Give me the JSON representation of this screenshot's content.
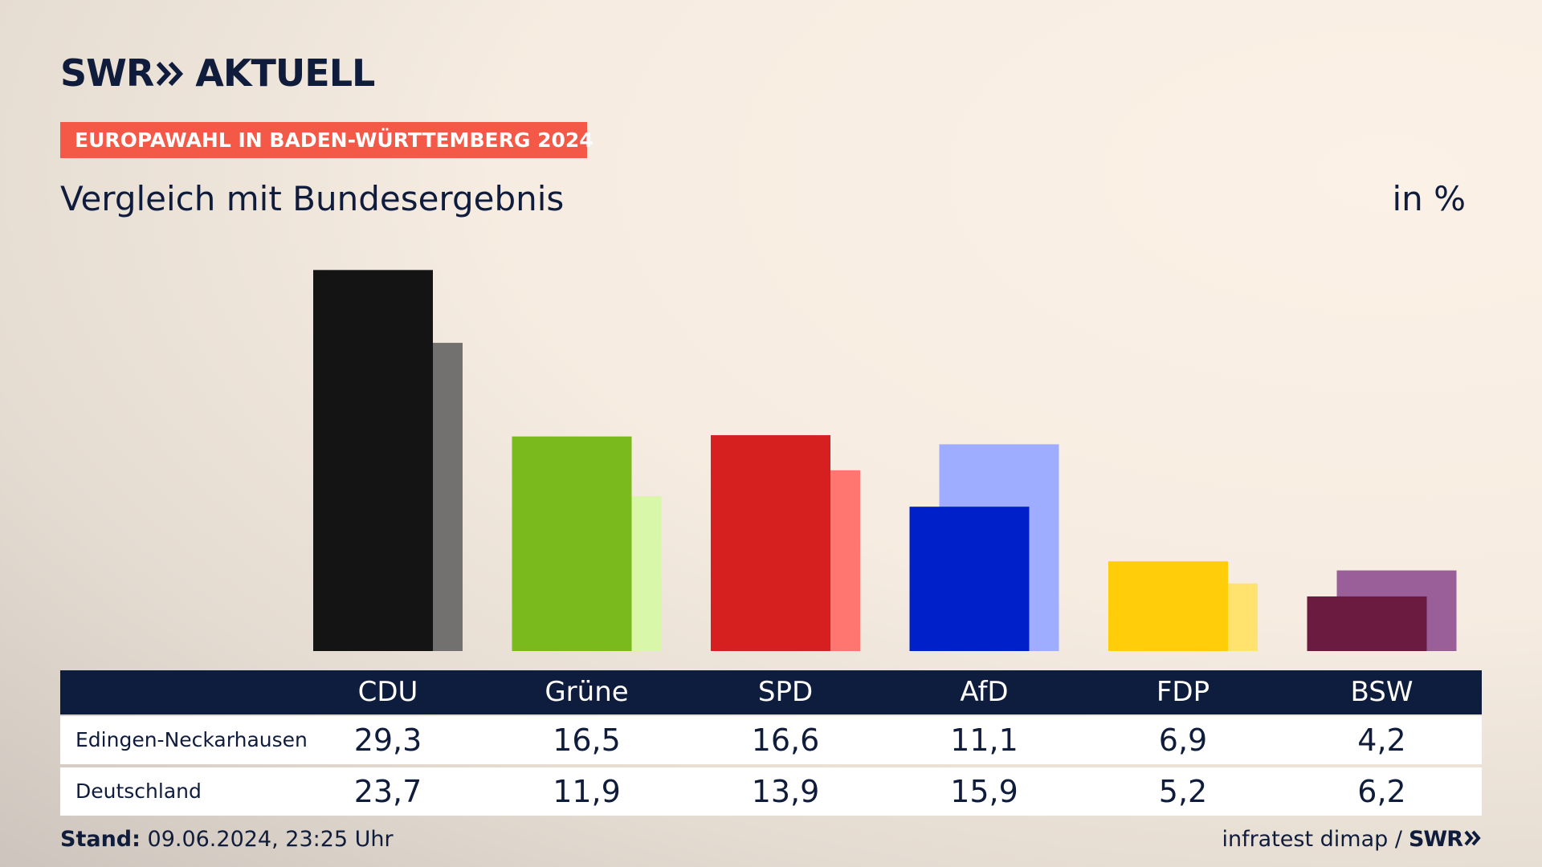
{
  "brand": {
    "logo_text": "SWR",
    "logo_suffix": "AKTUELL",
    "footer_brand": "SWR"
  },
  "header": {
    "badge": "EUROPAWAHL IN BADEN-WÜRTTEMBERG 2024",
    "title": "Vergleich mit Bundesergebnis",
    "unit": "in %"
  },
  "footer": {
    "stand_label": "Stand:",
    "stand_value": "09.06.2024, 23:25 Uhr",
    "source": "infratest dimap /"
  },
  "chart_data": {
    "type": "bar",
    "categories": [
      "CDU",
      "Grüne",
      "SPD",
      "AfD",
      "FDP",
      "BSW"
    ],
    "series": [
      {
        "name": "Edingen-Neckarhausen",
        "values": [
          29.3,
          16.5,
          16.6,
          11.1,
          6.9,
          4.2
        ],
        "display": [
          "29,3",
          "16,5",
          "16,6",
          "11,1",
          "6,9",
          "4,2"
        ]
      },
      {
        "name": "Deutschland",
        "values": [
          23.7,
          11.9,
          13.9,
          15.9,
          5.2,
          6.2
        ],
        "display": [
          "23,7",
          "11,9",
          "13,9",
          "15,9",
          "5,2",
          "6,2"
        ]
      }
    ],
    "colors_primary": [
      "#141414",
      "#7aba1c",
      "#d62020",
      "#0021c9",
      "#ffcd0a",
      "#6a1b3f"
    ],
    "colors_secondary": [
      "#737170",
      "#d9f7a8",
      "#ff7570",
      "#9eadff",
      "#ffe36e",
      "#9a5e99"
    ],
    "ylim": [
      0,
      30
    ]
  }
}
